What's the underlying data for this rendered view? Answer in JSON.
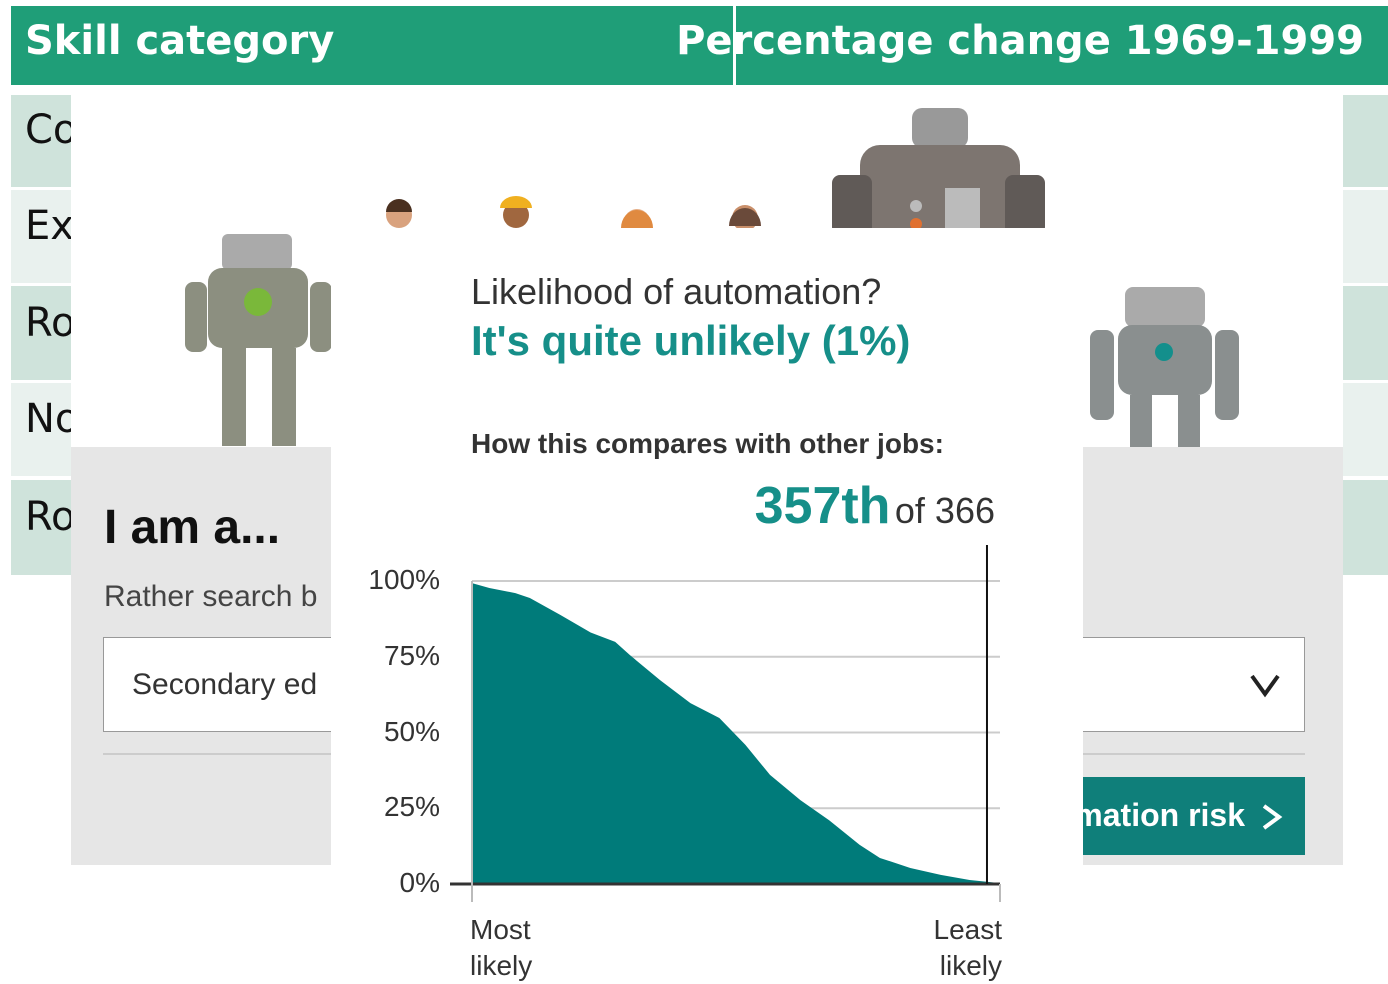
{
  "table": {
    "headers": [
      "Skill category",
      "Percentage change 1969-1999"
    ],
    "rows": [
      [
        "Co"
      ],
      [
        "Ex"
      ],
      [
        "Ro"
      ],
      [
        "No"
      ],
      [
        "Ro"
      ]
    ]
  },
  "search_panel": {
    "heading": "I am a...",
    "hint": "Rather search b",
    "dropdown": "Secondary ed",
    "button": "mation risk"
  },
  "result": {
    "question": "Likelihood of automation?",
    "answer": "It's quite unlikely (1%)",
    "compare": "How this compares with other jobs:",
    "rank": "357th",
    "rank_of": "of 366"
  },
  "chart_data": {
    "type": "area",
    "color": "#007b7a",
    "x": [
      1,
      13,
      31,
      41,
      62,
      83,
      100,
      110,
      131,
      152,
      172,
      190,
      207,
      228,
      248,
      269,
      283,
      304,
      325,
      345,
      366
    ],
    "values": [
      99.3,
      97.7,
      96,
      94.4,
      88.8,
      83,
      79.9,
      75.6,
      67.3,
      59.7,
      54.8,
      45.9,
      36,
      27.7,
      21,
      12.9,
      8.6,
      5.3,
      3,
      1.3,
      0.3
    ],
    "xlim": [
      1,
      366
    ],
    "ylim": [
      0,
      100
    ],
    "xticks": [
      {
        "value": 1,
        "label": "Most likely"
      },
      {
        "value": 366,
        "label": "Least likely"
      }
    ],
    "yticks": [
      {
        "value": 0,
        "label": "0%"
      },
      {
        "value": 25,
        "label": "25%"
      },
      {
        "value": 50,
        "label": "50%"
      },
      {
        "value": 75,
        "label": "75%"
      },
      {
        "value": 100,
        "label": "100%"
      }
    ],
    "highlight_x": 357,
    "grid": true
  }
}
